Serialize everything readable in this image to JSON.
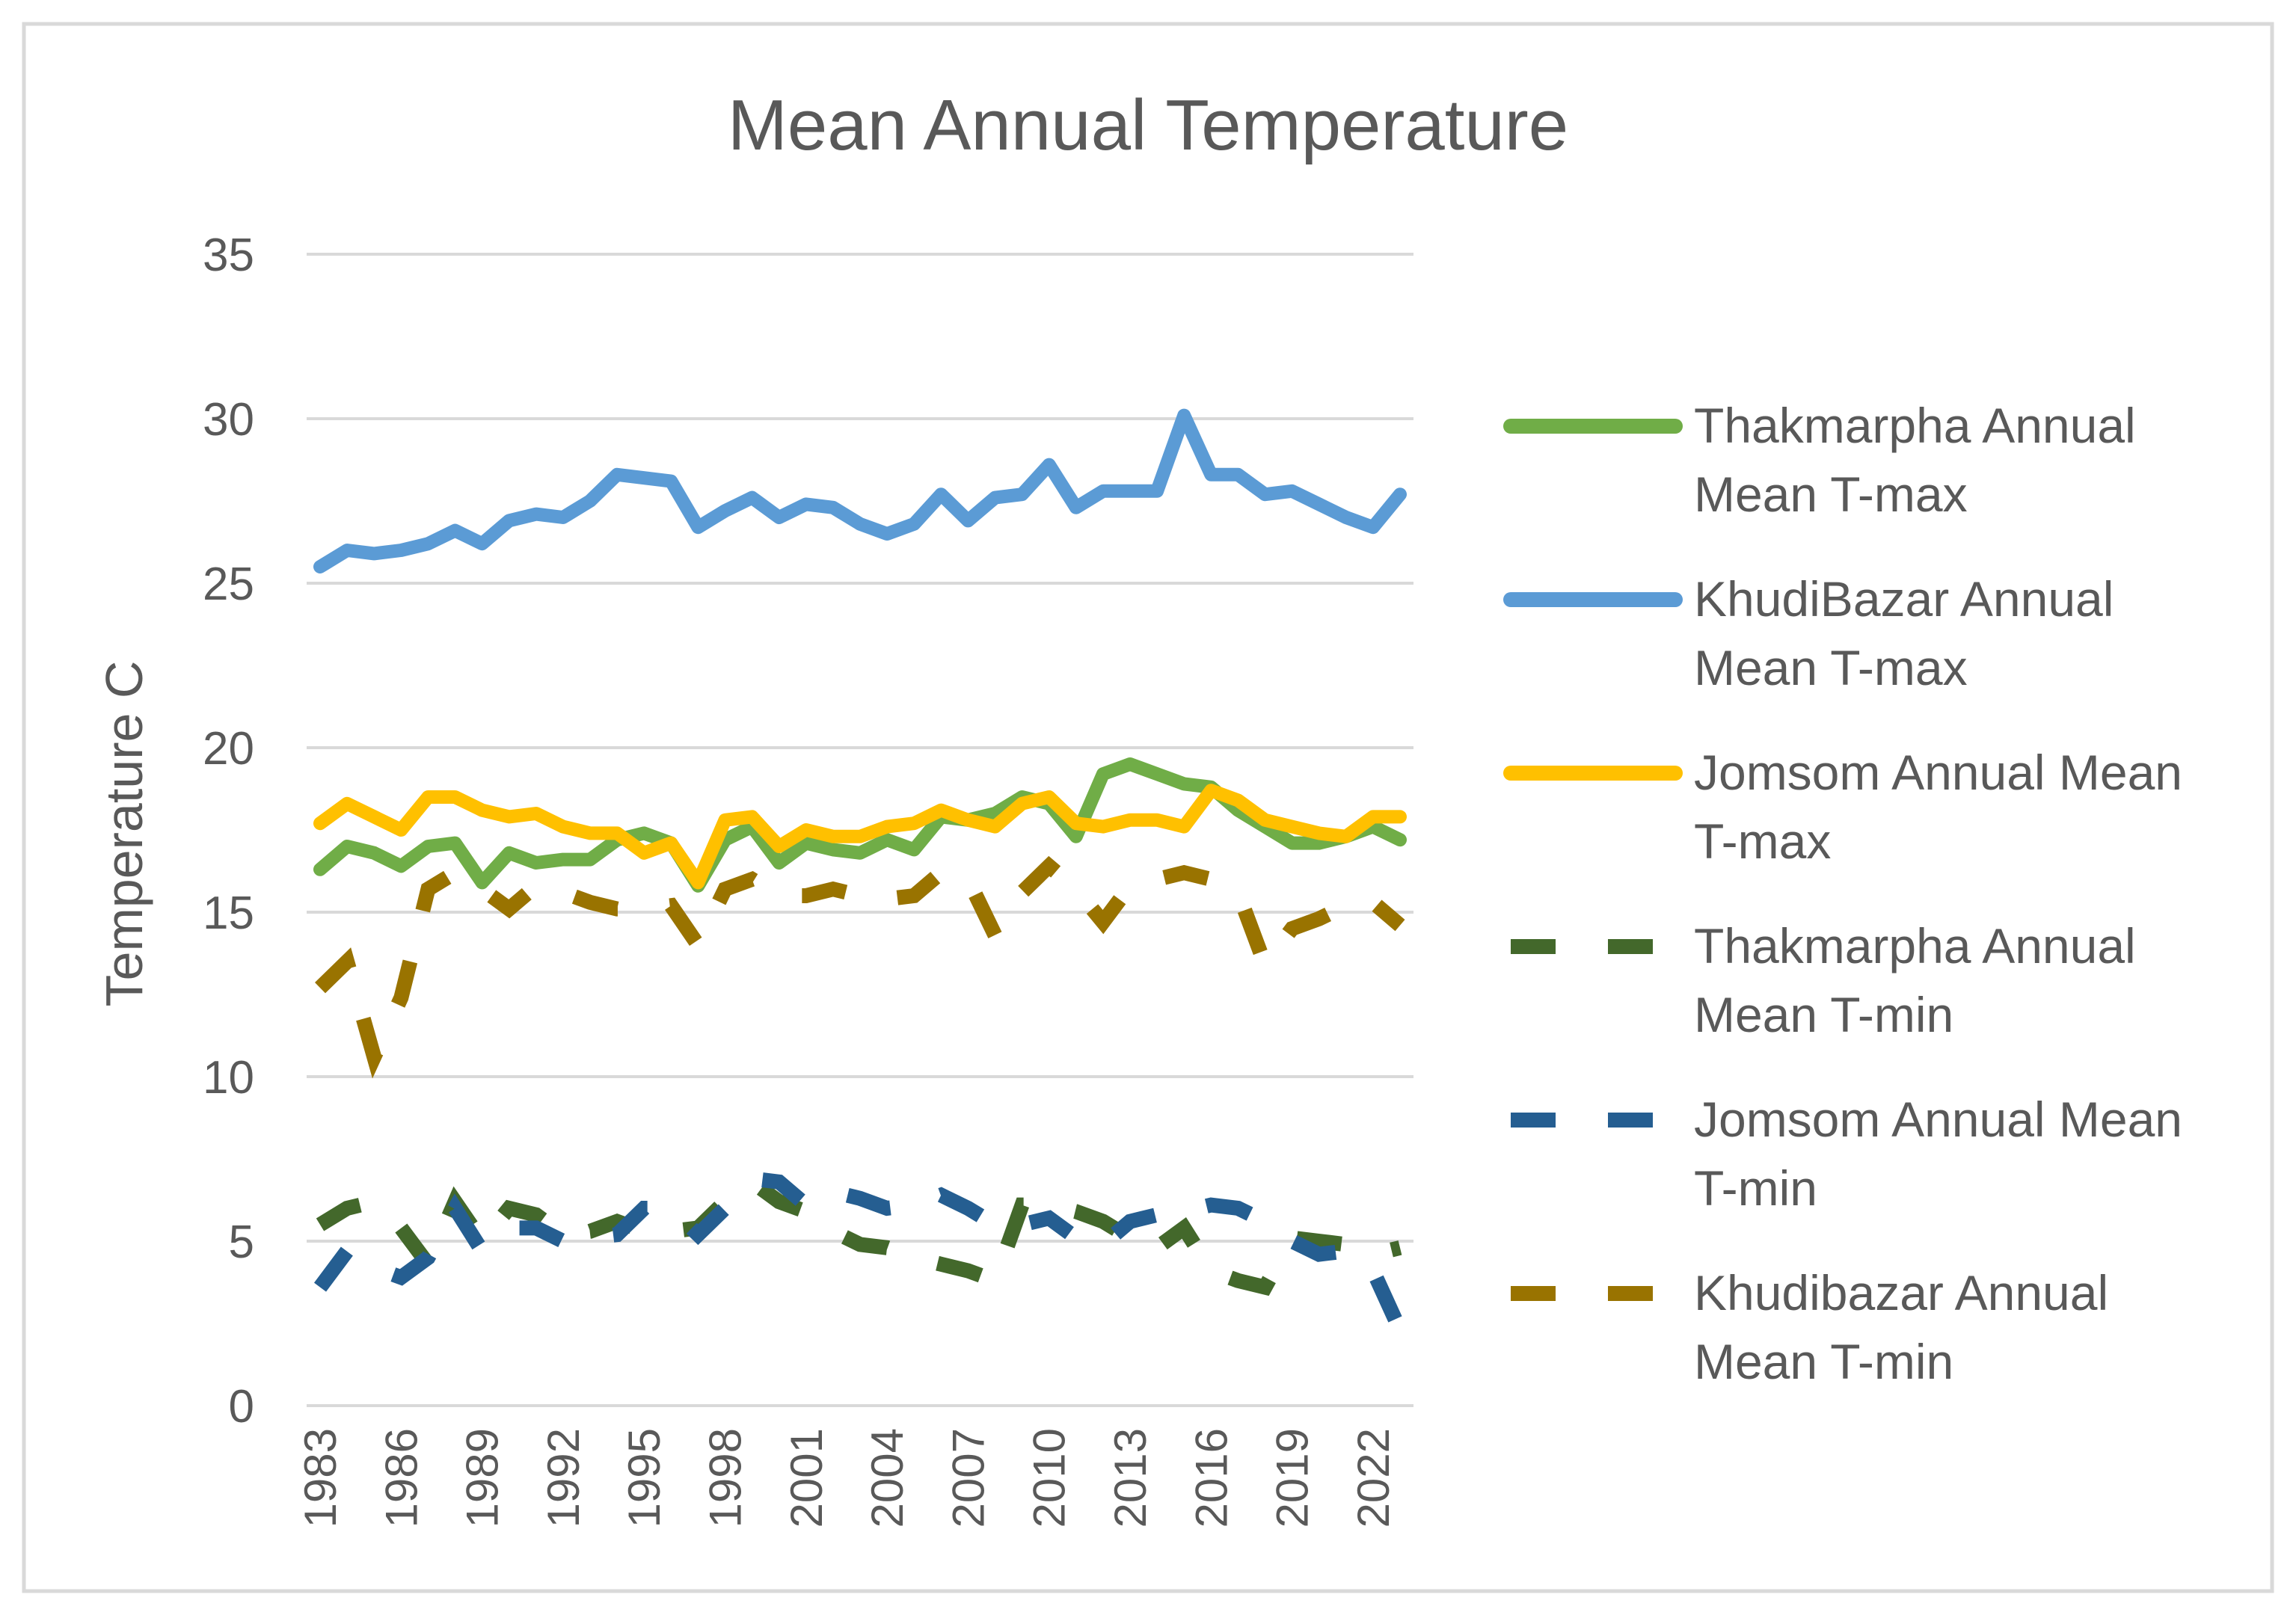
{
  "chart_data": {
    "type": "line",
    "title": "Mean Annual Temperature",
    "xlabel": "",
    "ylabel": "Temperature C",
    "ylim": [
      0,
      35
    ],
    "yticks": [
      0,
      5,
      10,
      15,
      20,
      25,
      30,
      35
    ],
    "grid": true,
    "legend_position": "right",
    "x": [
      1983,
      1984,
      1985,
      1986,
      1987,
      1988,
      1989,
      1990,
      1991,
      1992,
      1993,
      1994,
      1995,
      1996,
      1997,
      1998,
      1999,
      2000,
      2001,
      2002,
      2003,
      2004,
      2005,
      2006,
      2007,
      2008,
      2009,
      2010,
      2011,
      2012,
      2013,
      2014,
      2015,
      2016,
      2017,
      2018,
      2019,
      2020,
      2021,
      2022,
      2023
    ],
    "x_tick_labels": [
      "1983",
      "1986",
      "1989",
      "1992",
      "1995",
      "1998",
      "2001",
      "2004",
      "2007",
      "2010",
      "2013",
      "2016",
      "2019",
      "2022"
    ],
    "series": [
      {
        "name": "Thakmarpha Annual Mean T-max",
        "color": "#70AD47",
        "dashed": false,
        "values": [
          16.3,
          17.0,
          16.8,
          16.4,
          17.0,
          17.1,
          15.9,
          16.8,
          16.5,
          16.6,
          16.6,
          17.2,
          17.4,
          17.1,
          15.8,
          17.2,
          17.6,
          16.5,
          17.1,
          16.9,
          16.8,
          17.2,
          16.9,
          17.9,
          17.8,
          18.0,
          18.5,
          18.3,
          17.3,
          19.2,
          19.5,
          19.2,
          18.9,
          18.8,
          18.1,
          17.6,
          17.1,
          17.1,
          17.3,
          17.6,
          17.2
        ]
      },
      {
        "name": "KhudiBazar Annual Mean T-max",
        "color": "#5B9BD5",
        "dashed": false,
        "values": [
          25.5,
          26.0,
          25.9,
          26.0,
          26.2,
          26.6,
          26.2,
          26.9,
          27.1,
          27.0,
          27.5,
          28.3,
          28.2,
          28.1,
          26.7,
          27.2,
          27.6,
          27.0,
          27.4,
          27.3,
          26.8,
          26.5,
          26.8,
          27.7,
          26.9,
          27.6,
          27.7,
          28.6,
          27.3,
          27.8,
          27.8,
          27.8,
          30.1,
          28.3,
          28.3,
          27.7,
          27.8,
          27.4,
          27.0,
          26.7,
          27.7
        ]
      },
      {
        "name": "Jomsom Annual Mean T-max",
        "color": "#FFC000",
        "dashed": false,
        "values": [
          17.7,
          18.3,
          17.9,
          17.5,
          18.5,
          18.5,
          18.1,
          17.9,
          18.0,
          17.6,
          17.4,
          17.4,
          16.8,
          17.1,
          15.9,
          17.8,
          17.9,
          17.0,
          17.5,
          17.3,
          17.3,
          17.6,
          17.7,
          18.1,
          17.8,
          17.6,
          18.3,
          18.5,
          17.7,
          17.6,
          17.8,
          17.8,
          17.6,
          18.7,
          18.4,
          17.8,
          17.6,
          17.4,
          17.3,
          17.9,
          17.9
        ]
      },
      {
        "name": "Thakmarpha Annual Mean T-min",
        "color": "#43682B",
        "dashed": true,
        "values": [
          5.5,
          6.0,
          6.2,
          5.4,
          4.3,
          6.2,
          5.0,
          6.0,
          5.8,
          5.2,
          5.3,
          5.6,
          5.3,
          5.3,
          5.4,
          6.2,
          6.8,
          6.2,
          5.9,
          5.3,
          4.9,
          4.8,
          4.5,
          4.3,
          4.1,
          3.8,
          6.1,
          6.1,
          5.9,
          5.6,
          5.1,
          4.8,
          5.4,
          4.1,
          3.8,
          3.6,
          5.1,
          5.0,
          4.9,
          4.6,
          4.8
        ]
      },
      {
        "name": "Jomsom  Annual Mean T-min",
        "color": "#255E91",
        "dashed": true,
        "values": [
          3.6,
          4.7,
          4.2,
          3.9,
          4.5,
          6.0,
          4.7,
          5.4,
          5.4,
          5.0,
          5.1,
          5.2,
          6.0,
          6.0,
          5.2,
          6.0,
          6.9,
          6.8,
          6.1,
          6.5,
          6.3,
          6.0,
          6.1,
          6.4,
          6.0,
          5.5,
          5.5,
          5.7,
          5.1,
          4.9,
          5.6,
          5.8,
          5.9,
          6.1,
          6.0,
          5.6,
          5.0,
          4.6,
          4.7,
          4.1,
          2.3
        ]
      },
      {
        "name": "Khudibazar  Annual Mean T-min",
        "color": "#997300",
        "dashed": true,
        "values": [
          12.7,
          13.5,
          10.6,
          12.4,
          15.7,
          16.2,
          15.7,
          15.1,
          15.8,
          15.6,
          15.3,
          15.1,
          15.1,
          15.2,
          14.0,
          15.7,
          16.0,
          15.5,
          15.5,
          15.7,
          15.5,
          15.4,
          15.5,
          16.2,
          16.0,
          14.3,
          15.6,
          16.4,
          15.7,
          14.7,
          15.8,
          16.0,
          16.2,
          16.0,
          15.6,
          13.4,
          14.5,
          14.8,
          15.2,
          15.3,
          14.6
        ]
      }
    ]
  }
}
